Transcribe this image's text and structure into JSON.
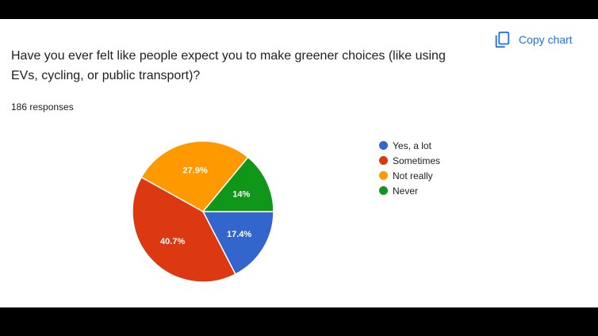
{
  "header": {
    "copy_chart_label": "Copy chart",
    "copy_icon": "copy-icon"
  },
  "question": "Have you ever felt like people expect you to make greener choices (like using EVs, cycling, or public transport)?",
  "responses_label": "186 responses",
  "chart_data": {
    "type": "pie",
    "total_responses": 186,
    "slices": [
      {
        "label": "Yes, a lot",
        "value": 17.4,
        "display": "17.4%",
        "color": "#3366cc"
      },
      {
        "label": "Sometimes",
        "value": 40.7,
        "display": "40.7%",
        "color": "#dc3912"
      },
      {
        "label": "Not really",
        "value": 27.9,
        "display": "27.9%",
        "color": "#ff9900"
      },
      {
        "label": "Never",
        "value": 14.0,
        "display": "14%",
        "color": "#109618"
      }
    ],
    "start_angle_deg": 90,
    "direction": "clockwise",
    "legend_position": "right"
  }
}
